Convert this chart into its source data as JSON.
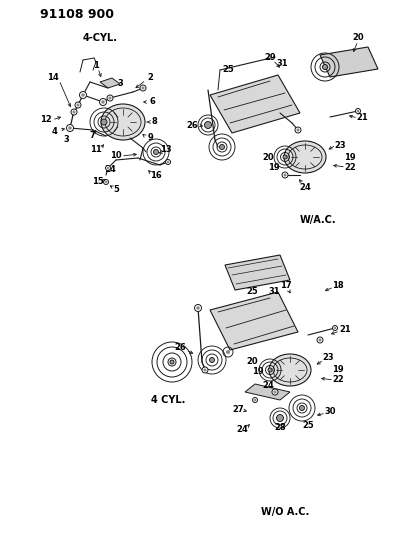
{
  "title": "91108 900",
  "bg": "#ffffff",
  "figsize": [
    3.96,
    5.33
  ],
  "dpi": 100,
  "labels": {
    "4cyl_top": "4-CYL.",
    "wac": "W/A.C.",
    "4cyl_bot": "4 CYL.",
    "woac": "W/O A.C."
  }
}
